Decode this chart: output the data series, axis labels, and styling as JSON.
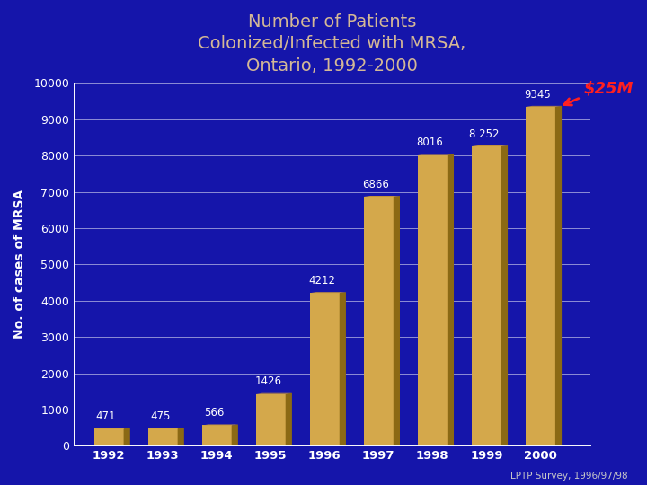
{
  "title_line1": "Number of Patients",
  "title_line2": "Colonized/Infected with MRSA,",
  "title_line3": "Ontario, 1992-2000",
  "years": [
    "1992",
    "1993",
    "1994",
    "1995",
    "1996",
    "1997",
    "1998",
    "1999",
    "2000"
  ],
  "values": [
    471,
    475,
    566,
    1426,
    4212,
    6866,
    8016,
    8252,
    9345
  ],
  "bar_front_color": "#D4A84B",
  "bar_side_color": "#8B6914",
  "bar_top_color": "#C8963C",
  "bar_base_color": "#A0A0A0",
  "background_color": "#1515AA",
  "title_color": "#D4B896",
  "ylabel": "No. of cases of MRSA",
  "ylabel_color": "#FFFFFF",
  "tick_color": "#FFFFFF",
  "grid_color": "#FFFFFF",
  "annotation_color": "#FFFFFF",
  "dollar_annotation": "$25M",
  "dollar_color": "#FF2020",
  "footer": "LPTP Survey, 1996/97/98",
  "footer_color": "#C8C8C8",
  "ylim": [
    0,
    10000
  ],
  "yticks": [
    0,
    1000,
    2000,
    3000,
    4000,
    5000,
    6000,
    7000,
    8000,
    9000,
    10000
  ],
  "label_values": [
    "471",
    "475",
    "566",
    "1426",
    "4212",
    "6866",
    "8016",
    "8 252",
    "9345"
  ],
  "label_ha": [
    "right",
    "right",
    "right",
    "right",
    "right",
    "right",
    "right",
    "right",
    "right"
  ]
}
